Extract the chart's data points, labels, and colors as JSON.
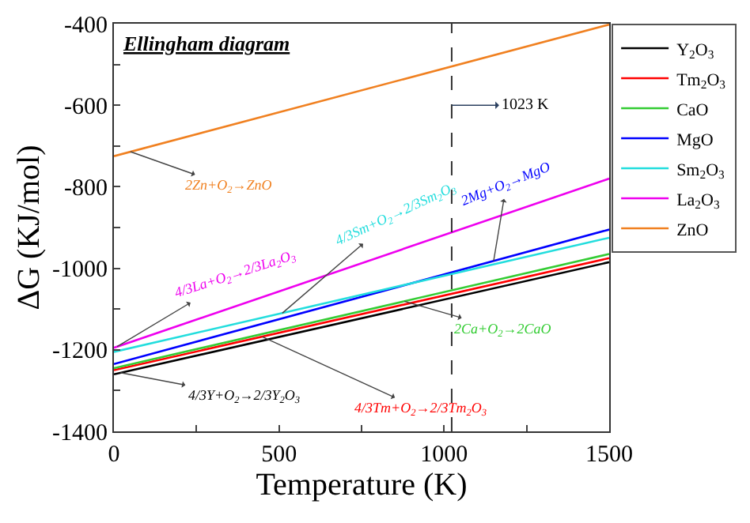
{
  "chart_data": {
    "type": "line",
    "title": "Ellingham diagram",
    "xlabel": "Temperature (K)",
    "ylabel": "ΔG (KJ/mol)",
    "x": [
      0,
      1500
    ],
    "series": [
      {
        "name": "Y$_{2}$O$_{3}$",
        "color": "#000000",
        "values": [
          -1260,
          -985
        ]
      },
      {
        "name": "Tm$_{2}$O$_{3}$",
        "color": "#ff0000",
        "values": [
          -1250,
          -975
        ]
      },
      {
        "name": "CaO",
        "color": "#33cc33",
        "values": [
          -1245,
          -965
        ]
      },
      {
        "name": "MgO",
        "color": "#0000ff",
        "values": [
          -1235,
          -905
        ]
      },
      {
        "name": "Sm$_{2}$O$_{3}$",
        "color": "#22dddd",
        "values": [
          -1205,
          -925
        ]
      },
      {
        "name": "La$_{2}$O$_{3}$",
        "color": "#ee00ee",
        "values": [
          -1195,
          -780
        ]
      },
      {
        "name": "ZnO",
        "color": "#f08020",
        "values": [
          -725,
          -402
        ]
      }
    ],
    "xlim": [
      0,
      1500
    ],
    "ylim": [
      -1400,
      -400
    ],
    "xticks": [
      0,
      {
        "value": 250,
        "label": null
      },
      500,
      {
        "value": 750,
        "label": null
      },
      1000,
      {
        "value": 1250,
        "label": null
      },
      1500
    ],
    "yticks": [
      -1400,
      {
        "value": -1300,
        "label": null
      },
      -1200,
      {
        "value": -1100,
        "label": null
      },
      -1000,
      {
        "value": -900,
        "label": null
      },
      -800,
      {
        "value": -700,
        "label": null
      },
      -600,
      {
        "value": -500,
        "label": null
      },
      -400
    ],
    "ref_lines": [
      {
        "axis": "x",
        "value": 1023,
        "label": "1023 K",
        "color": "#333333",
        "line_style": "dashed"
      }
    ],
    "annotations": [
      {
        "text": "2Zn+O$_{2}$→ZnO",
        "x": 50,
        "y": -714
      },
      {
        "text": "4/3La+O$_{2}$→2/3La$_{2}$O$_{3}$",
        "x": 10,
        "y": -1192
      },
      {
        "text": "4/3Sm+O$_{2}$→2/3Sm$_{2}$O$_{3}$",
        "x": 510,
        "y": -1110
      },
      {
        "text": "2Mg+O$_{2}$→MgO",
        "x": 1150,
        "y": -982
      },
      {
        "text": "2Ca+O$_{2}$→2CaO",
        "x": 880,
        "y": -1081
      },
      {
        "text": "4/3Tm+O$_{2}$→2/3Tm$_{2}$O$_{3}$",
        "x": 450,
        "y": -1168
      },
      {
        "text": "4/3Y+O$_{2}$→2/3Y$_{2}$O$_{3}$",
        "x": 20,
        "y": -1256
      }
    ],
    "legend": "right",
    "marker": "none",
    "line_style": "solid"
  }
}
